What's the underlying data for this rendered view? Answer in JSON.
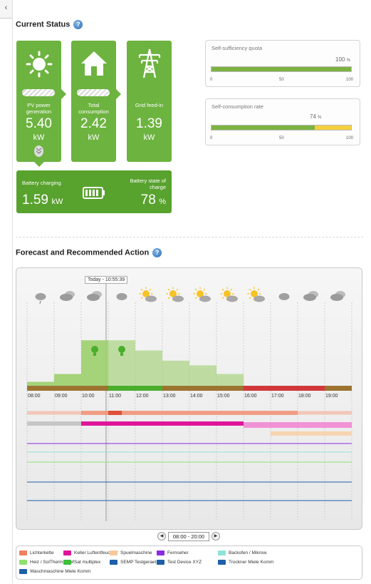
{
  "sections": {
    "current_status": "Current Status",
    "forecast": "Forecast and Recommended Action",
    "help_glyph": "?"
  },
  "tiles": {
    "pv": {
      "label_line1": "PV power",
      "label_line2": "generation",
      "value": "5.40",
      "unit": "kW"
    },
    "consumption": {
      "label_line1": "Total",
      "label_line2": "consumption",
      "value": "2.42",
      "unit": "kW"
    },
    "grid": {
      "label": "Grid feed-in",
      "value": "1.39",
      "unit": "kW"
    },
    "battery": {
      "charging_label": "Battery charging",
      "charging_value": "1.59",
      "charging_unit": "kW",
      "soc_label_line1": "Battery state of",
      "soc_label_line2": "charge",
      "soc_value": "78",
      "soc_unit": "%"
    }
  },
  "self_sufficiency": {
    "label": "Self-sufficiency quota",
    "value": "100",
    "unit": "%",
    "fraction": 1.0,
    "ticks": [
      "0",
      "50",
      "100"
    ],
    "color": "#7cb342"
  },
  "self_consumption": {
    "label": "Self-consumption rate",
    "value": "74",
    "unit": "%",
    "fraction": 0.74,
    "ticks": [
      "0",
      "50",
      "100"
    ],
    "color": "#7cb342",
    "rest_color": "#f4d03f"
  },
  "forecast": {
    "current_time_label": "Today - 10:55:39",
    "hours": [
      "08:00",
      "09:00",
      "10:00",
      "11:00",
      "12:00",
      "13:00",
      "14:00",
      "15:00",
      "16:00",
      "17:00",
      "18:00",
      "19:00"
    ],
    "weather": [
      "rain-icon",
      "cloudy-icon",
      "cloudy-icon",
      "cloud-icon",
      "partly-sunny-icon",
      "partly-sunny-icon",
      "partly-sunny-icon",
      "partly-sunny-icon",
      "partly-sunny-icon",
      "cloud-icon",
      "cloudy-icon",
      "cloudy-icon"
    ],
    "pv_forecast": [
      0.05,
      0.15,
      0.58,
      0.58,
      0.45,
      0.32,
      0.26,
      0.15,
      0.0,
      0.0,
      0.0,
      0.0
    ],
    "hour_status": [
      "brown",
      "brown",
      "brown",
      "green",
      "green",
      "brown",
      "brown",
      "brown",
      "red",
      "red",
      "red",
      "brown"
    ],
    "status_colors": {
      "brown": "#9c7430",
      "green": "#4aae2c",
      "red": "#d0383a"
    },
    "recommended_hours": [
      2,
      3
    ],
    "range_label": "08:00 - 20:00"
  },
  "legend": [
    {
      "label": "Lichterkette",
      "color": "#f08060"
    },
    {
      "label": "Keller Luftentfeuchter",
      "color": "#e0169a"
    },
    {
      "label": "Spuelmaschine",
      "color": "#f6c99a"
    },
    {
      "label": "Fernseher",
      "color": "#8a2be2"
    },
    {
      "label": "Backofen / Mikrow.",
      "color": "#8fe3d8"
    },
    {
      "label": "Heiz / SolTherm / EM",
      "color": "#90e070"
    },
    {
      "label": "Sat multiplex",
      "color": "#3cc03c"
    },
    {
      "label": "SEMP Testgeraet",
      "color": "#1e5fa8"
    },
    {
      "label": "Test Device XYZ",
      "color": "#1e5fa8"
    },
    {
      "label": "Trockner Miele Komm",
      "color": "#1e5fa8"
    },
    {
      "label": "Waschmaschine Miele Komm",
      "color": "#1e5fa8"
    }
  ],
  "colors": {
    "tile_green": "#6db33f",
    "dark_green": "#58a22e"
  }
}
